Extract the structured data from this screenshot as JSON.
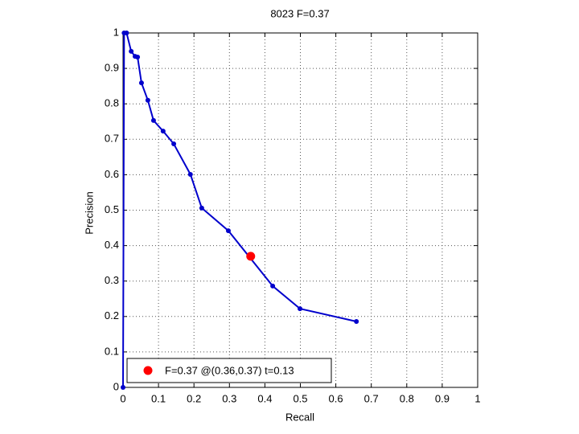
{
  "chart_data": {
    "type": "line",
    "title": "8023 F=0.37",
    "x_label": "Recall",
    "y_label": "Precision",
    "series": [
      {
        "color": "#0000cc",
        "x": [
          0,
          0.003,
          0.01,
          0.023,
          0.034,
          0.041,
          0.052,
          0.07,
          0.086,
          0.113,
          0.143,
          0.19,
          0.222,
          0.297,
          0.422,
          0.499,
          0.658
        ],
        "values": [
          0,
          1,
          1,
          0.948,
          0.934,
          0.932,
          0.859,
          0.81,
          0.753,
          0.723,
          0.687,
          0.601,
          0.506,
          0.442,
          0.286,
          0.222,
          0.186
        ]
      },
      {
        "name": "F=0.37 @(0.36,0.37) t=0.13",
        "color": "#ff0000",
        "x": [
          0.36
        ],
        "values": [
          0.37
        ]
      }
    ],
    "xlim": [
      0,
      1
    ],
    "ylim": [
      0,
      1
    ],
    "xticks": [
      0,
      0.1,
      0.2,
      0.3,
      0.4,
      0.5,
      0.6,
      0.7,
      0.8,
      0.9,
      1
    ],
    "yticks": [
      0,
      0.1,
      0.2,
      0.3,
      0.4,
      0.5,
      0.6,
      0.7,
      0.8,
      0.9,
      1
    ],
    "grid": true,
    "legend": "lower left"
  }
}
